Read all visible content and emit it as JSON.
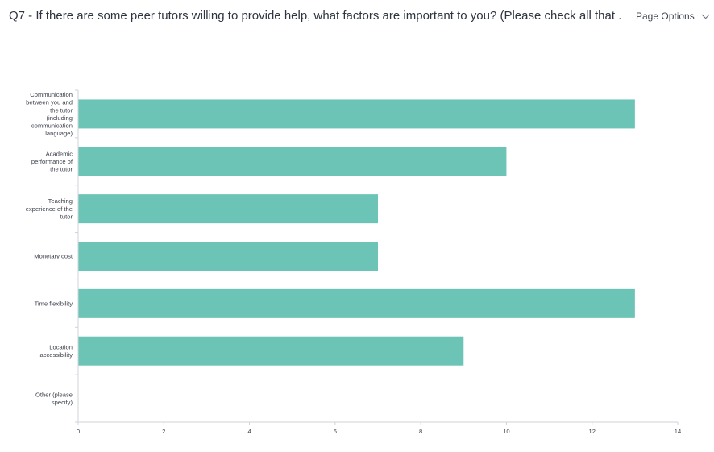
{
  "header": {
    "question_title": "Q7 - If there are some peer tutors willing to provide help, what factors are important to you? (Please check all that ...",
    "page_options_label": "Page Options",
    "page_options_icon": "chevron-down-icon"
  },
  "chart_data": {
    "type": "bar",
    "orientation": "horizontal",
    "categories": [
      [
        "Communication",
        "between you and",
        "the tutor",
        "(including",
        "communication",
        "language)"
      ],
      [
        "Academic",
        "performance of",
        "the tutor"
      ],
      [
        "Teaching",
        "experience of the",
        "tutor"
      ],
      [
        "Monetary cost"
      ],
      [
        "Time flexibility"
      ],
      [
        "Location",
        "accessibility"
      ],
      [
        "Other (please",
        "specify)"
      ]
    ],
    "values": [
      13,
      10,
      7,
      7,
      13,
      9,
      0
    ],
    "xlim": [
      0,
      14
    ],
    "xticks": [
      "0",
      "2",
      "4",
      "6",
      "8",
      "10",
      "12",
      "14"
    ],
    "bar_color": "#6cc4b7",
    "grid": false,
    "title": "",
    "xlabel": "",
    "ylabel": ""
  }
}
